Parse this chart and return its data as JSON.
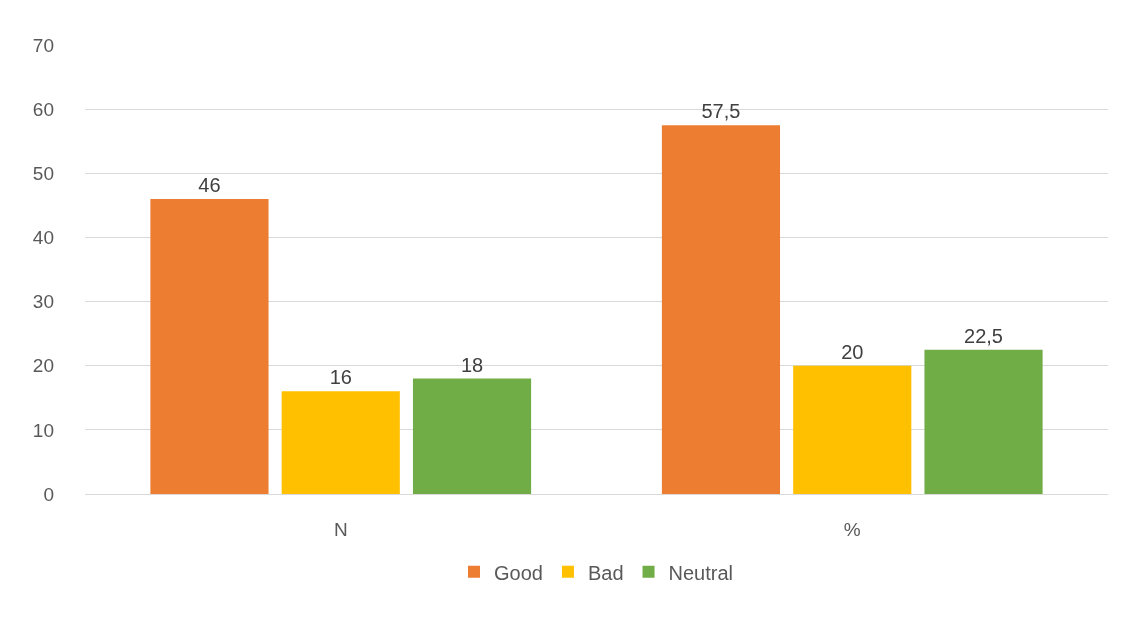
{
  "chart_data": {
    "type": "bar",
    "categories": [
      "N",
      "%"
    ],
    "series": [
      {
        "name": "Good",
        "color": "#ed7d31",
        "values": [
          46,
          57.5
        ],
        "value_labels": [
          "46",
          "57,5"
        ]
      },
      {
        "name": "Bad",
        "color": "#ffc000",
        "values": [
          16,
          20
        ],
        "value_labels": [
          "16",
          "20"
        ]
      },
      {
        "name": "Neutral",
        "color": "#70ad47",
        "values": [
          18,
          22.5
        ],
        "value_labels": [
          "18",
          "22,5"
        ]
      }
    ],
    "ylim": [
      0,
      70
    ],
    "yticks": [
      0,
      10,
      20,
      30,
      40,
      50,
      60,
      70
    ],
    "grid": "y",
    "legend": "bottom"
  }
}
